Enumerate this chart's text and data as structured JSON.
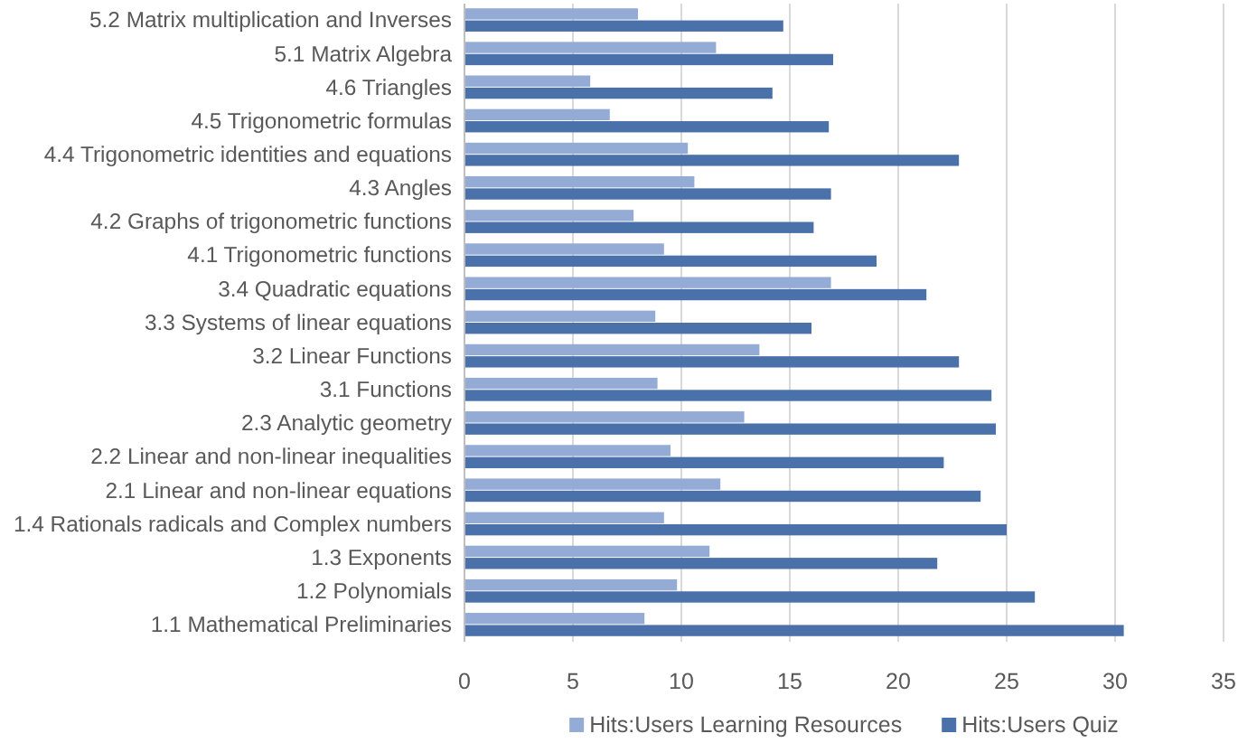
{
  "chart_data": {
    "type": "bar",
    "orientation": "horizontal",
    "categories": [
      "5.2 Matrix multiplication and Inverses",
      "5.1 Matrix Algebra",
      "4.6 Triangles",
      "4.5 Trigonometric formulas",
      "4.4 Trigonometric identities and equations",
      "4.3 Angles",
      "4.2 Graphs of trigonometric functions",
      "4.1 Trigonometric functions",
      "3.4 Quadratic equations",
      "3.3 Systems of linear equations",
      "3.2 Linear Functions",
      "3.1 Functions",
      "2.3 Analytic geometry",
      "2.2 Linear and non-linear inequalities",
      "2.1 Linear and non-linear equations",
      "1.4 Rationals radicals and Complex numbers",
      "1.3 Exponents",
      "1.2 Polynomials",
      "1.1 Mathematical Preliminaries"
    ],
    "series": [
      {
        "name": "Hits:Users Learning Resources",
        "color": "#94abd6",
        "values": [
          8.0,
          11.6,
          5.8,
          6.7,
          10.3,
          10.6,
          7.8,
          9.2,
          16.9,
          8.8,
          13.6,
          8.9,
          12.9,
          9.5,
          11.8,
          9.2,
          11.3,
          9.8,
          8.3
        ]
      },
      {
        "name": "Hits:Users Quiz",
        "color": "#4a71a9",
        "values": [
          14.7,
          17.0,
          14.2,
          16.8,
          22.8,
          16.9,
          16.1,
          19.0,
          21.3,
          16.0,
          22.8,
          24.3,
          24.5,
          22.1,
          23.8,
          25.0,
          21.8,
          26.3,
          30.4
        ]
      }
    ],
    "xlim": [
      0,
      35
    ],
    "xticks": [
      0,
      5,
      10,
      15,
      20,
      25,
      30,
      35
    ],
    "grid": "x",
    "legend": "bottom"
  }
}
